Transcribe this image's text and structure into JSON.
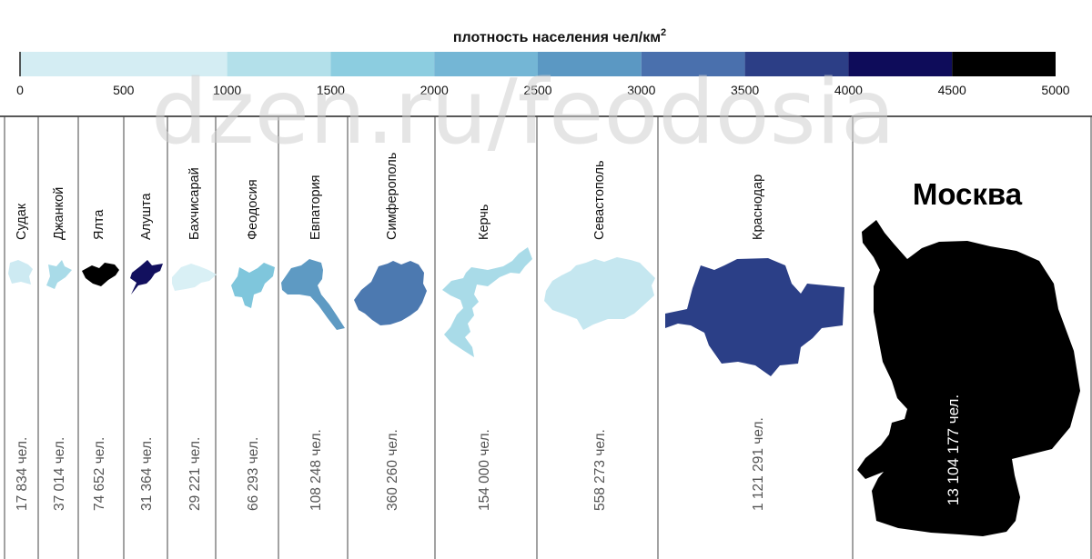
{
  "chart_data": {
    "type": "table",
    "legend": {
      "title": "плотность населения чел/км",
      "title_sup": "2",
      "ticks": [
        "0",
        "500",
        "1000",
        "1500",
        "2000",
        "2500",
        "3000",
        "3500",
        "4000",
        "4500",
        "5000"
      ],
      "range": [
        0,
        5000
      ],
      "bins": [
        {
          "from": 0,
          "to": 1000,
          "color": "#d4edf3"
        },
        {
          "from": 1000,
          "to": 1500,
          "color": "#b3e0ea"
        },
        {
          "from": 1500,
          "to": 2000,
          "color": "#8ccde0"
        },
        {
          "from": 2000,
          "to": 2500,
          "color": "#74b6d5"
        },
        {
          "from": 2500,
          "to": 3000,
          "color": "#5b98c3"
        },
        {
          "from": 3000,
          "to": 3500,
          "color": "#4a70ad"
        },
        {
          "from": 3500,
          "to": 4000,
          "color": "#2c3e86"
        },
        {
          "from": 4000,
          "to": 4500,
          "color": "#0e0c5a"
        },
        {
          "from": 4500,
          "to": 5000,
          "color": "#000000"
        }
      ]
    },
    "cities": [
      {
        "name": "Судак",
        "population": "17 834 чел.",
        "color": "#cdeaf2"
      },
      {
        "name": "Джанкой",
        "population": "37 014 чел.",
        "color": "#a9dbe8"
      },
      {
        "name": "Ялта",
        "population": "74 652 чел.",
        "color": "#000000"
      },
      {
        "name": "Алушта",
        "population": "31 364 чел.",
        "color": "#12105e"
      },
      {
        "name": "Бахчисарай",
        "population": "29 221 чел.",
        "color": "#d9f0f5"
      },
      {
        "name": "Феодосия",
        "population": "66 293 чел.",
        "color": "#7fc6dc"
      },
      {
        "name": "Евпатория",
        "population": "108 248 чел.",
        "color": "#5e9ac3"
      },
      {
        "name": "Симферополь",
        "population": "360 260 чел.",
        "color": "#4c79b0"
      },
      {
        "name": "Керчь",
        "population": "154 000 чел.",
        "color": "#a9dbe8"
      },
      {
        "name": "Севастополь",
        "population": "558 273 чел.",
        "color": "#c5e7f0"
      },
      {
        "name": "Краснодар",
        "population": "1 121 291 чел.",
        "color": "#2b3f87"
      },
      {
        "name": "Москва",
        "population": "13 104 177 чел.",
        "color": "#000000"
      }
    ]
  },
  "watermark": "dzen.ru/feodosia"
}
